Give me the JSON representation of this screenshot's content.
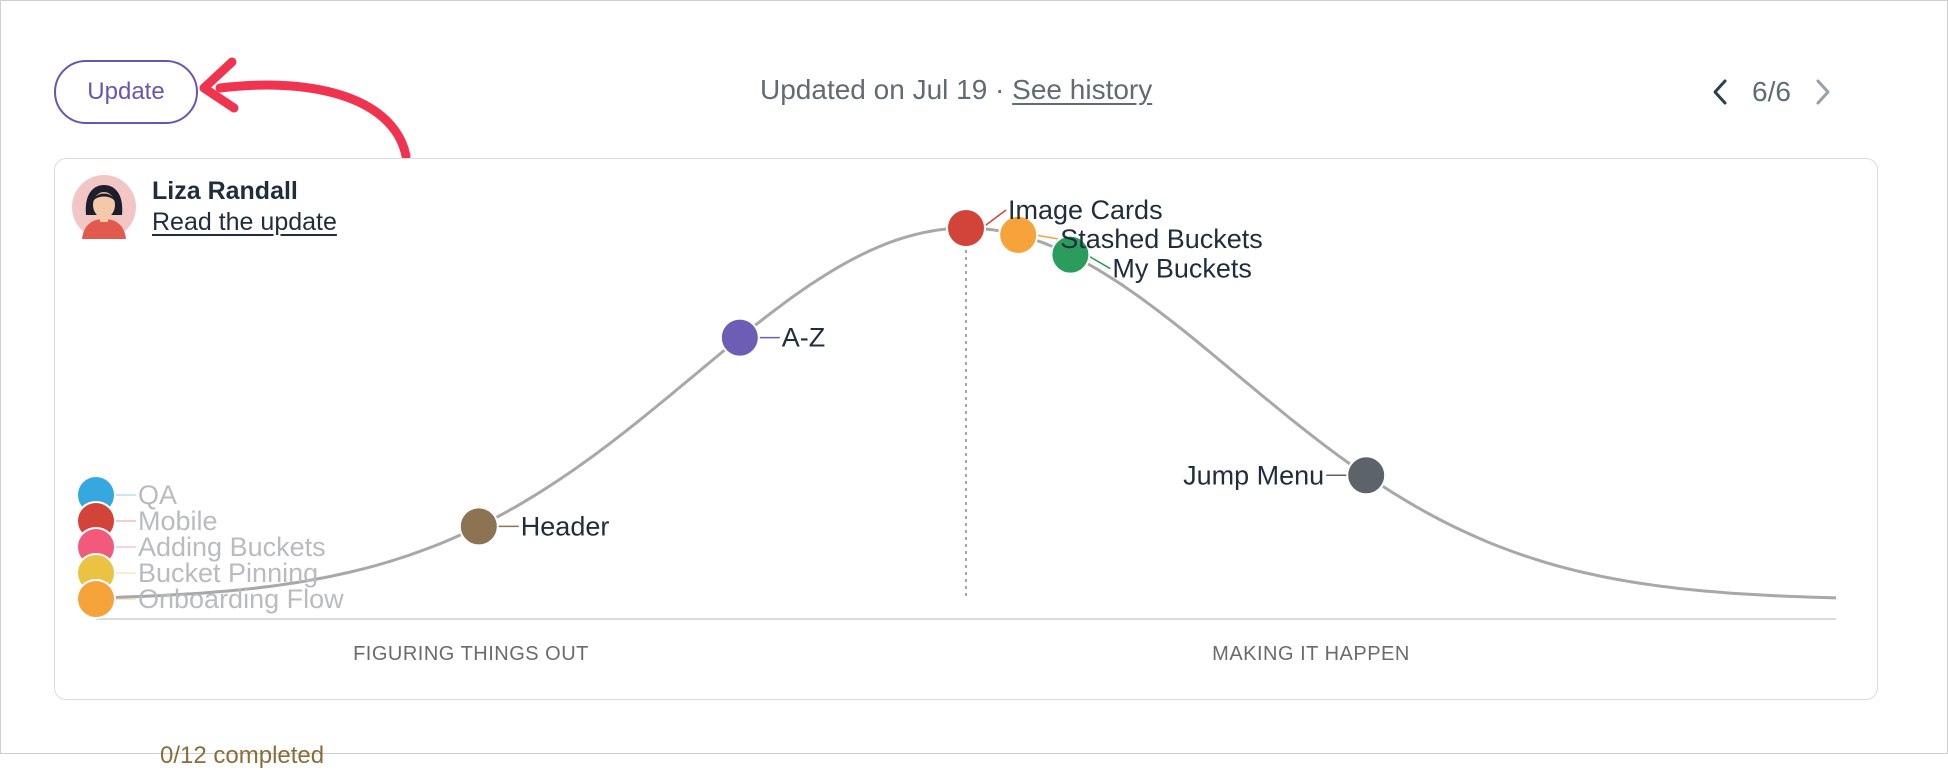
{
  "header": {
    "update_button": "Update",
    "updated_text": "Updated on Jul 19 · ",
    "history_link": "See history",
    "pager": "6/6"
  },
  "author": {
    "name": "Liza Randall",
    "link": "Read the update"
  },
  "icons": {
    "prev": "chevron-left-icon",
    "next": "chevron-right-icon",
    "annotation": "curved-arrow-icon",
    "avatar": "avatar-icon"
  },
  "chart_data": {
    "type": "scatter",
    "x_range": [
      0,
      100
    ],
    "y_range": [
      0,
      1
    ],
    "phases": [
      "FIGURING THINGS OUT",
      "MAKING IT HAPPEN"
    ],
    "divider_x": 50,
    "curve": "bell",
    "points": [
      {
        "label": "QA",
        "x": 0,
        "y": 0.29,
        "color": "#35a8e0",
        "faded": true
      },
      {
        "label": "Mobile",
        "x": 0,
        "y": 0.22,
        "color": "#d2443a",
        "faded": true
      },
      {
        "label": "Adding Buckets",
        "x": 0,
        "y": 0.15,
        "color": "#f25a7c",
        "faded": true
      },
      {
        "label": "Bucket Pinning",
        "x": 0,
        "y": 0.07,
        "color": "#e9c341",
        "faded": true
      },
      {
        "label": "Onboarding Flow",
        "x": 0,
        "y": 0.0,
        "color": "#f5a33a",
        "faded": true
      },
      {
        "label": "Header",
        "x": 22,
        "y": 0.23,
        "color": "#8c7352",
        "faded": false
      },
      {
        "label": "A-Z",
        "x": 37,
        "y": 0.72,
        "color": "#6e5db5",
        "faded": false
      },
      {
        "label": "Image Cards",
        "x": 50,
        "y": 1.0,
        "color": "#d2443a",
        "faded": false
      },
      {
        "label": "Stashed Buckets",
        "x": 53,
        "y": 0.99,
        "color": "#f5a33a",
        "faded": false
      },
      {
        "label": "My Buckets",
        "x": 56,
        "y": 0.96,
        "color": "#2a9d5c",
        "faded": false
      },
      {
        "label": "Jump Menu",
        "x": 73,
        "y": 0.4,
        "color": "#5c6369",
        "faded": false
      }
    ]
  },
  "footer": {
    "partial_text": "0/12 completed"
  }
}
